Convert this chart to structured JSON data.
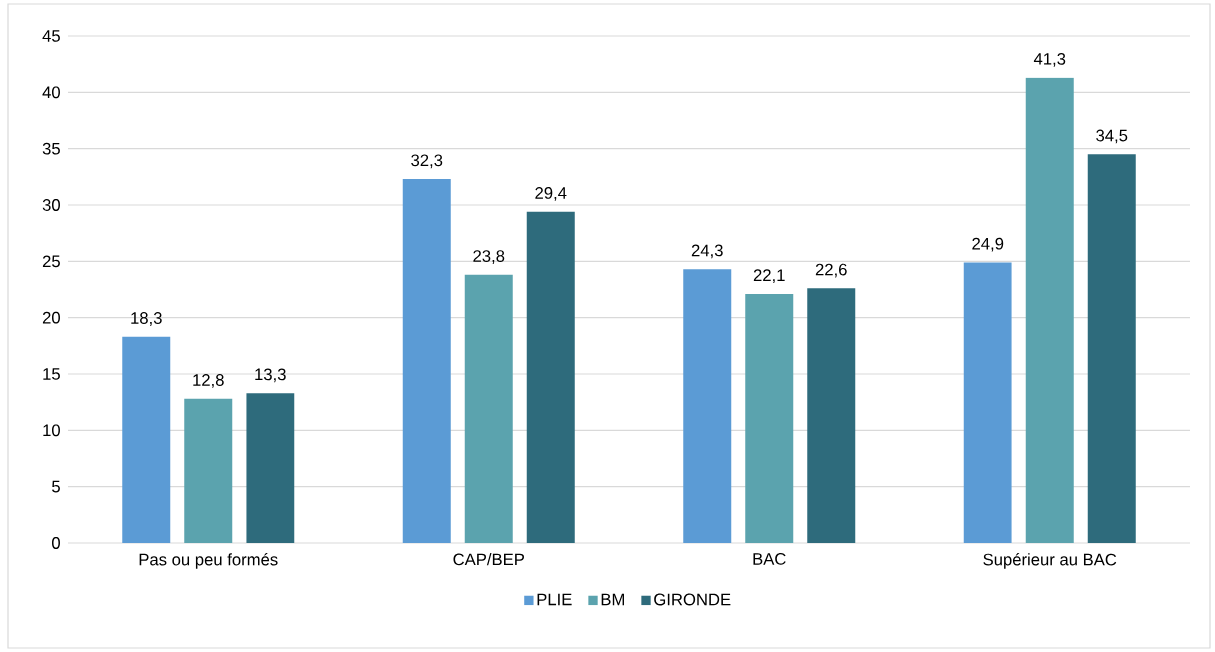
{
  "chart_data": {
    "type": "bar",
    "categories": [
      "Pas ou peu formés",
      "CAP/BEP",
      "BAC",
      "Supérieur au BAC"
    ],
    "series": [
      {
        "name": "PLIE",
        "color": "#5b9bd5",
        "values": [
          18.3,
          32.3,
          24.3,
          24.9
        ],
        "value_labels": [
          "18,3",
          "32,3",
          "24,3",
          "24,9"
        ]
      },
      {
        "name": "BM",
        "color": "#5ba3ae",
        "values": [
          12.8,
          23.8,
          22.1,
          41.3
        ],
        "value_labels": [
          "12,8",
          "23,8",
          "22,1",
          "41,3"
        ]
      },
      {
        "name": "GIRONDE",
        "color": "#2e6b7c",
        "values": [
          13.3,
          29.4,
          22.6,
          34.5
        ],
        "value_labels": [
          "13,3",
          "29,4",
          "22,6",
          "34,5"
        ]
      }
    ],
    "ylim": [
      0,
      45
    ],
    "yticks": [
      0,
      5,
      10,
      15,
      20,
      25,
      30,
      35,
      40,
      45
    ],
    "grid": "y",
    "legend": "bottom"
  }
}
